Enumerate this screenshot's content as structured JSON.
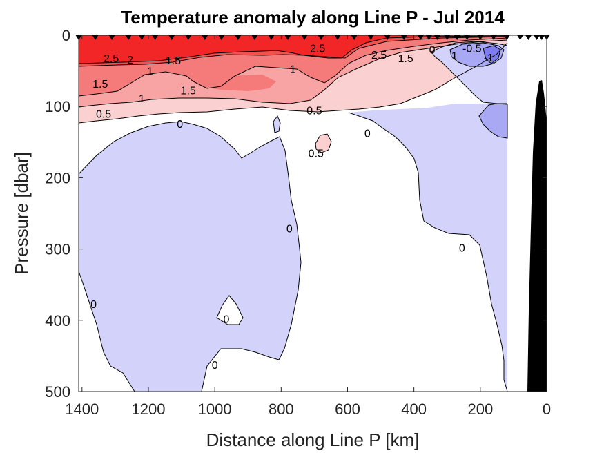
{
  "chart_data": {
    "type": "contour",
    "title": "Temperature anomaly along Line P - Jul 2014",
    "xlabel": "Distance along Line P [km]",
    "ylabel": "Pressure [dbar]",
    "xlim": [
      1410,
      0
    ],
    "ylim": [
      0,
      500
    ],
    "x_reversed": true,
    "y_reversed": true,
    "xticks": [
      1400,
      1200,
      1000,
      800,
      600,
      400,
      200,
      0
    ],
    "yticks": [
      0,
      100,
      200,
      300,
      400,
      500
    ],
    "contour_levels": [
      -1,
      -0.5,
      0,
      0.5,
      1,
      1.5,
      2,
      2.5
    ],
    "colors": {
      "ge_2_5": "#f22626",
      "2_to_2_5": "#f45050",
      "1_5_to_2": "#f57a7a",
      "1_to_1_5": "#f8a4a4",
      "0_5_to_1": "#fbd0d0",
      "0_to_0_5": "#ffffff",
      "neg_0_5_to_0": "#d2d2fa",
      "neg_1_to_neg_0_5": "#a8a8f5",
      "le_neg_1": "#7c7cf0",
      "bathymetry": "#000000"
    },
    "station_distances_km": [
      1410,
      1360,
      1310,
      1260,
      1220,
      1180,
      1130,
      1080,
      1030,
      980,
      930,
      880,
      830,
      780,
      730,
      680,
      630,
      580,
      530,
      480,
      430,
      380,
      355,
      330,
      300,
      270,
      240,
      200,
      160,
      120,
      80,
      55,
      30,
      15,
      0
    ],
    "contour_labels": [
      {
        "text": "2.5",
        "x": 690,
        "y": 18
      },
      {
        "text": "2.5",
        "x": 1312,
        "y": 32
      },
      {
        "text": "2",
        "x": 1255,
        "y": 34
      },
      {
        "text": "1.5",
        "x": 1125,
        "y": 35
      },
      {
        "text": "1",
        "x": 1195,
        "y": 50
      },
      {
        "text": "2.5",
        "x": 505,
        "y": 27
      },
      {
        "text": "1.5",
        "x": 425,
        "y": 32
      },
      {
        "text": "1",
        "x": 278,
        "y": 28
      },
      {
        "text": "1",
        "x": 765,
        "y": 47
      },
      {
        "text": "1.5",
        "x": 1345,
        "y": 68
      },
      {
        "text": "1.5",
        "x": 1080,
        "y": 77
      },
      {
        "text": "1",
        "x": 1220,
        "y": 88
      },
      {
        "text": "0.5",
        "x": 1335,
        "y": 110
      },
      {
        "text": "0.5",
        "x": 700,
        "y": 105
      },
      {
        "text": "0",
        "x": 1105,
        "y": 124
      },
      {
        "text": "0",
        "x": 540,
        "y": 137
      },
      {
        "text": "0.5",
        "x": 695,
        "y": 165
      },
      {
        "text": "0",
        "x": 345,
        "y": 20
      },
      {
        "text": "-0.5",
        "x": 225,
        "y": 18
      },
      {
        "text": "-1",
        "x": 175,
        "y": 31
      },
      {
        "text": "0",
        "x": 775,
        "y": 271
      },
      {
        "text": "0",
        "x": 255,
        "y": 298
      },
      {
        "text": "0",
        "x": 1365,
        "y": 377
      },
      {
        "text": "0",
        "x": 965,
        "y": 398
      },
      {
        "text": "0",
        "x": 1000,
        "y": 462
      }
    ]
  }
}
